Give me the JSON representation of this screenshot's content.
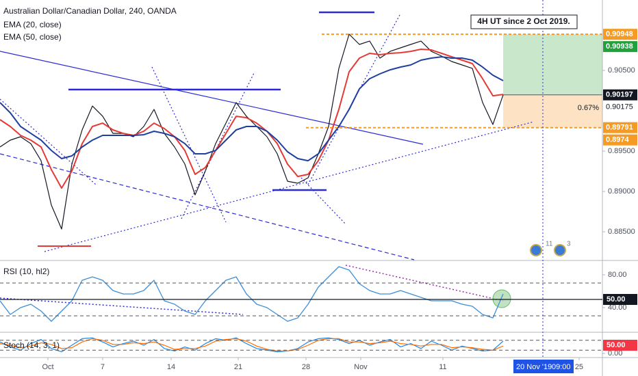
{
  "chart_data": [
    {
      "type": "line",
      "title": "Australian Dollar/Canadian Dollar, 240, OANDA",
      "color": "#131722",
      "values": [
        0.89551,
        0.89636,
        0.89678,
        0.89593,
        0.89381,
        0.88831,
        0.88534,
        0.89339,
        0.89763,
        0.90059,
        0.89932,
        0.8972,
        0.8972,
        0.89678,
        0.89805,
        0.90017,
        0.8972,
        0.89551,
        0.89339,
        0.88958,
        0.89254,
        0.89593,
        0.89847,
        0.90102,
        0.89932,
        0.89805,
        0.89678,
        0.89466,
        0.89127,
        0.89102,
        0.89169,
        0.89466,
        0.89805,
        0.90525,
        0.90949,
        0.90822,
        0.90864,
        0.90653,
        0.90737,
        0.9078,
        0.90822,
        0.90864,
        0.90737,
        0.90678,
        0.9061,
        0.90568,
        0.90525,
        0.90102,
        0.8983,
        0.90197
      ],
      "series": [
        {
          "name": "EMA (20, close)",
          "color": "#e53935",
          "values": [
            0.8989,
            0.89805,
            0.89695,
            0.89636,
            0.89551,
            0.89271,
            0.89042,
            0.89254,
            0.89593,
            0.89805,
            0.89847,
            0.89763,
            0.8972,
            0.89695,
            0.89746,
            0.89847,
            0.8978,
            0.89678,
            0.89508,
            0.89212,
            0.89297,
            0.89508,
            0.8972,
            0.89932,
            0.89915,
            0.89847,
            0.89746,
            0.89593,
            0.89339,
            0.89186,
            0.89212,
            0.89381,
            0.89636,
            0.90017,
            0.90483,
            0.90653,
            0.90712,
            0.90695,
            0.90712,
            0.9072,
            0.90737,
            0.90763,
            0.90754,
            0.90712,
            0.90669,
            0.90627,
            0.90585,
            0.90398,
            0.90186,
            0.90203
          ]
        },
        {
          "name": "EMA (50, close)",
          "color": "#1e3f9e",
          "values": [
            0.90102,
            0.89975,
            0.89805,
            0.8972,
            0.89636,
            0.89508,
            0.89407,
            0.89441,
            0.89551,
            0.89636,
            0.89695,
            0.89695,
            0.89695,
            0.89695,
            0.89703,
            0.89746,
            0.8972,
            0.89678,
            0.89593,
            0.89466,
            0.89466,
            0.89508,
            0.89636,
            0.89763,
            0.89805,
            0.89805,
            0.89746,
            0.89636,
            0.89492,
            0.89407,
            0.89381,
            0.89466,
            0.89636,
            0.89805,
            0.90017,
            0.90271,
            0.90398,
            0.90458,
            0.90508,
            0.90542,
            0.90568,
            0.90627,
            0.90653,
            0.90669,
            0.90653,
            0.90653,
            0.90627,
            0.90542,
            0.90441,
            0.90373
          ]
        }
      ],
      "xlim": [
        0,
        58.67
      ],
      "xticks": [
        {
          "value": 4.67,
          "label": "Oct"
        },
        {
          "value": 10,
          "label": "7"
        },
        {
          "value": 16.67,
          "label": "14"
        },
        {
          "value": 23.2,
          "label": "21"
        },
        {
          "value": 29.8,
          "label": "28"
        },
        {
          "value": 35.13,
          "label": "Nov"
        },
        {
          "value": 43.13,
          "label": "11"
        },
        {
          "value": 56.4,
          "label": "25"
        }
      ],
      "ylim": [
        0.88153,
        0.91373
      ],
      "yticks": [
        {
          "value": 0.905,
          "label": "0.90500"
        },
        {
          "value": 0.895,
          "label": "0.89500"
        },
        {
          "value": 0.89,
          "label": "0.89000"
        },
        {
          "value": 0.885,
          "label": "0.88500"
        }
      ],
      "price_tags": [
        {
          "value": 0.90948,
          "color": "#f59a23"
        },
        {
          "value": 0.90938,
          "color": "#22a03c"
        },
        {
          "value": 0.90197,
          "color": "#131722"
        },
        {
          "value": 0.90175,
          "color": "#ffffff"
        },
        {
          "value": 0.89791,
          "color": "#f59a23"
        },
        {
          "value": 0.8974,
          "color": "#f59a23"
        }
      ],
      "annotation": "4H UT since 2 Oct 2019.",
      "position_label": "0.67%",
      "events": [
        "11",
        "3"
      ],
      "cursor_date": "20 Nov '19",
      "cursor_time": "09:00"
    },
    {
      "type": "line",
      "title": "RSI (10, hl2)",
      "color": "#3b8ed6",
      "values": [
        48.3,
        31.7,
        40,
        44.2,
        35.8,
        23.3,
        35.8,
        48.3,
        73.3,
        77.5,
        73.3,
        60.8,
        56.7,
        56.7,
        60.8,
        73.3,
        48.3,
        44.2,
        35.8,
        31.7,
        48.3,
        60.8,
        73.3,
        77.5,
        56.7,
        44.2,
        40,
        31.7,
        23.3,
        27.5,
        44.2,
        65,
        77.5,
        90,
        85.8,
        69.2,
        60.8,
        56.7,
        56.7,
        60.8,
        56.7,
        52.5,
        48.3,
        48.3,
        48.3,
        44.2,
        41.7,
        31.7,
        27.5,
        56.7
      ],
      "xlim": [
        0,
        58.67
      ],
      "ylim": [
        10.83,
        95.83
      ],
      "yticks": [
        {
          "value": 80,
          "label": "80.00"
        },
        {
          "value": 40,
          "label": "40.00"
        }
      ],
      "levels": [
        70,
        50,
        30
      ],
      "value_tag": {
        "value": 50,
        "label": "50.00",
        "color": "#131722"
      }
    },
    {
      "type": "line",
      "title": "Stoch (14, 3, 1)",
      "series": [
        {
          "color": "#1e88e5",
          "values": [
            70,
            40,
            20,
            60,
            85,
            30,
            10,
            50,
            90,
            95,
            70,
            40,
            60,
            75,
            50,
            85,
            30,
            15,
            40,
            20,
            60,
            90,
            80,
            95,
            60,
            30,
            20,
            10,
            15,
            30,
            70,
            90,
            95,
            85,
            60,
            80,
            50,
            70,
            85,
            40,
            60,
            30,
            75,
            50,
            20,
            45,
            30,
            15,
            20,
            75
          ]
        },
        {
          "color": "#ff6d00",
          "values": [
            60,
            50,
            35,
            45,
            65,
            55,
            30,
            35,
            70,
            90,
            80,
            55,
            55,
            65,
            60,
            70,
            50,
            25,
            30,
            30,
            45,
            75,
            85,
            90,
            75,
            45,
            25,
            15,
            15,
            25,
            50,
            80,
            90,
            90,
            70,
            70,
            60,
            65,
            75,
            60,
            55,
            45,
            55,
            55,
            35,
            40,
            35,
            25,
            20,
            45
          ]
        }
      ],
      "xlim": [
        0,
        58.67
      ],
      "ylim": [
        -20.83,
        120.83
      ],
      "yticks": [
        {
          "value": 0,
          "label": "0.00"
        }
      ],
      "levels": [
        80,
        20
      ],
      "value_tag": {
        "value": 50,
        "label": "50.00",
        "color": "#f23645"
      }
    }
  ]
}
